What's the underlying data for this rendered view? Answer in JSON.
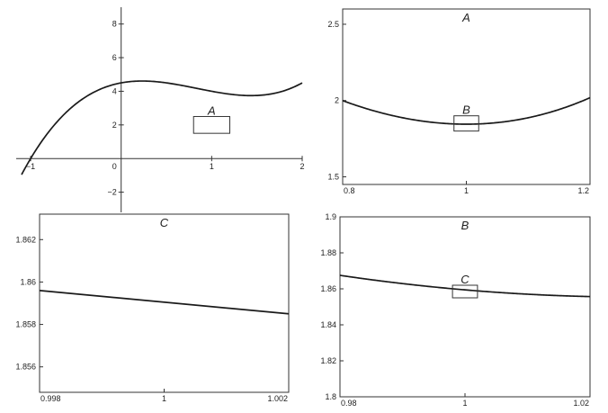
{
  "chart_data": [
    {
      "id": "main",
      "type": "line",
      "function": "x^3 - 2.5x^2 + x + 4.5 (approx.)",
      "xlim": [
        -1.1,
        2.0
      ],
      "ylim": [
        -3.2,
        9.0
      ],
      "xticks": [
        {
          "v": -1,
          "label": "−1"
        },
        {
          "v": 1,
          "label": "1"
        },
        {
          "v": 2,
          "label": "2"
        }
      ],
      "yticks": [
        {
          "v": 8,
          "label": "8"
        },
        {
          "v": 6,
          "label": "6"
        },
        {
          "v": 4,
          "label": "4"
        },
        {
          "v": 2,
          "label": "2"
        },
        {
          "v": -2,
          "label": "−2"
        }
      ],
      "origin_label": "0",
      "zoom_box": {
        "label": "A",
        "x": [
          0.8,
          1.2
        ],
        "y": [
          1.5,
          2.5
        ]
      }
    },
    {
      "id": "A",
      "type": "line",
      "title": "A",
      "xlim": [
        0.8,
        1.2
      ],
      "ylim": [
        1.45,
        2.6
      ],
      "xticks": [
        {
          "v": 0.8,
          "label": "0.8"
        },
        {
          "v": 1.0,
          "label": "1"
        },
        {
          "v": 1.2,
          "label": "1.2"
        }
      ],
      "yticks": [
        {
          "v": 2.5,
          "label": "2.5"
        },
        {
          "v": 2.0,
          "label": "2"
        },
        {
          "v": 1.5,
          "label": "1.5"
        }
      ],
      "zoom_box": {
        "label": "B",
        "x": [
          0.98,
          1.02
        ],
        "y": [
          1.8,
          1.9
        ]
      }
    },
    {
      "id": "B",
      "type": "line",
      "title": "B",
      "xlim": [
        0.98,
        1.02
      ],
      "ylim": [
        1.8,
        1.9
      ],
      "xticks": [
        {
          "v": 0.98,
          "label": "0.98"
        },
        {
          "v": 1.0,
          "label": "1"
        },
        {
          "v": 1.02,
          "label": "1.02"
        }
      ],
      "yticks": [
        {
          "v": 1.9,
          "label": "1.9"
        },
        {
          "v": 1.88,
          "label": "1.88"
        },
        {
          "v": 1.86,
          "label": "1.86"
        },
        {
          "v": 1.84,
          "label": "1.84"
        },
        {
          "v": 1.82,
          "label": "1.82"
        },
        {
          "v": 1.8,
          "label": "1.8"
        }
      ],
      "zoom_box": {
        "label": "C",
        "x": [
          0.998,
          1.002
        ],
        "y": [
          1.855,
          1.862
        ]
      }
    },
    {
      "id": "C",
      "type": "line",
      "title": "C",
      "xlim": [
        0.998,
        1.002
      ],
      "ylim": [
        1.8548,
        1.8632
      ],
      "xticks": [
        {
          "v": 0.998,
          "label": "0.998"
        },
        {
          "v": 1.0,
          "label": "1"
        },
        {
          "v": 1.002,
          "label": "1.002"
        }
      ],
      "yticks": [
        {
          "v": 1.862,
          "label": "1.862"
        },
        {
          "v": 1.86,
          "label": "1.86"
        },
        {
          "v": 1.858,
          "label": "1.858"
        },
        {
          "v": 1.856,
          "label": "1.856"
        }
      ],
      "segment": {
        "x": [
          0.998,
          1.002
        ],
        "y": [
          1.8596,
          1.8585
        ]
      }
    }
  ]
}
